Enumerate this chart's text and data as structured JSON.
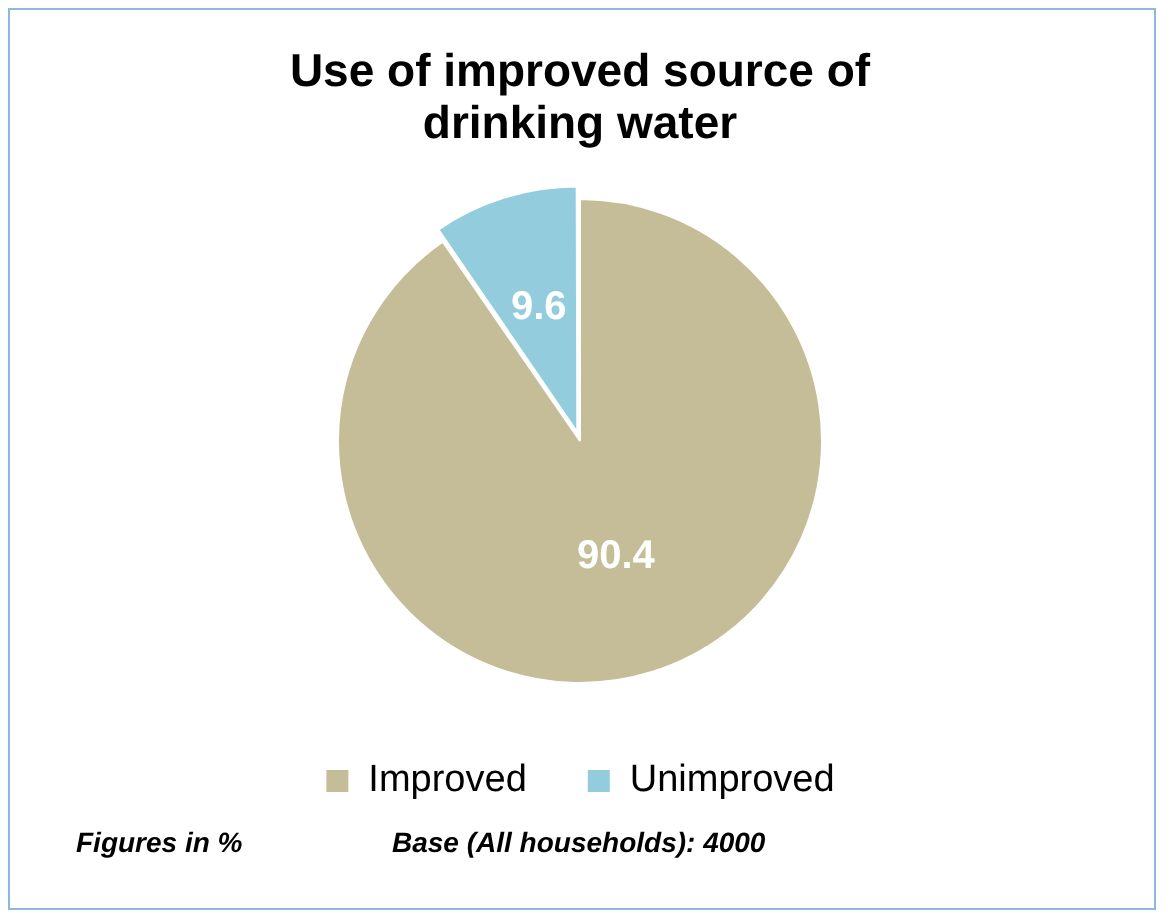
{
  "chart_data": {
    "type": "pie",
    "title": "Use of improved source of drinking water",
    "categories": [
      "Improved",
      "Unimproved"
    ],
    "values": [
      90.4,
      9.6
    ],
    "colors": [
      "#c4bd97",
      "#93cddd"
    ],
    "data_labels": true,
    "legend": "bottom",
    "annotations": [
      "Figures in %",
      "Base (All households): 4000"
    ]
  }
}
